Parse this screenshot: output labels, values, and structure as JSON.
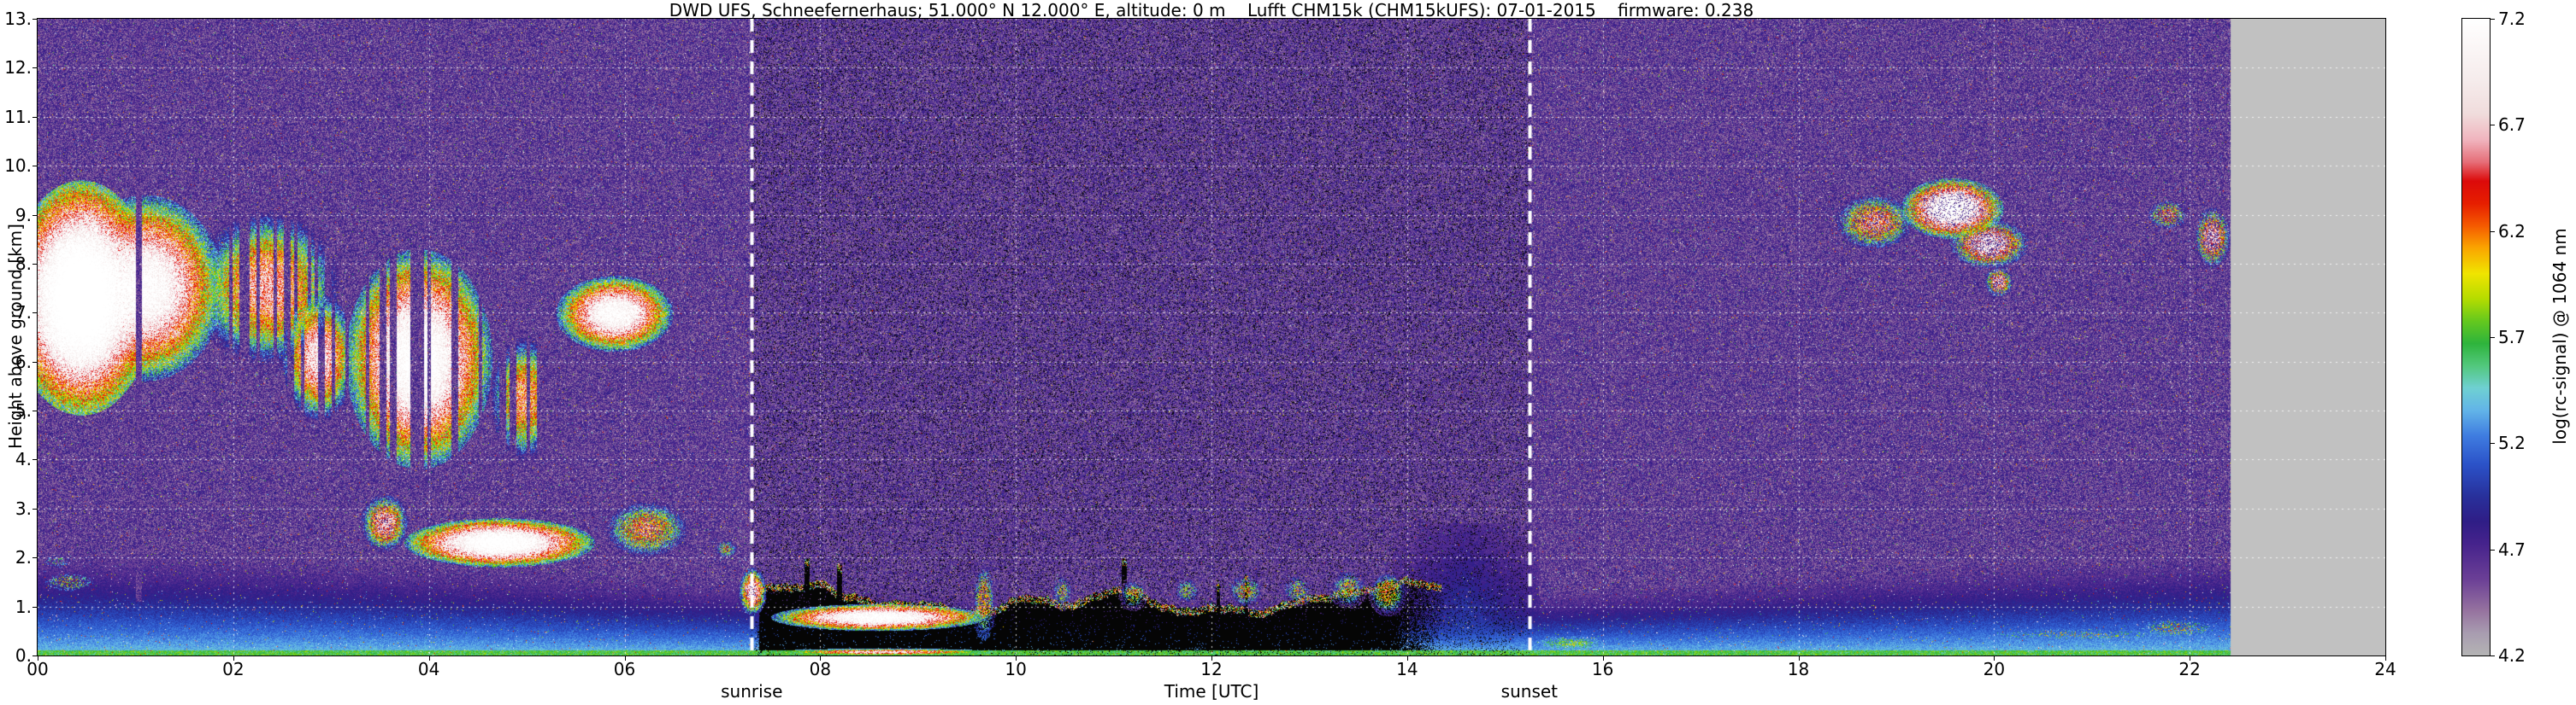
{
  "chart_data": {
    "type": "heatmap",
    "title": "DWD UFS, Schneefernerhaus; 51.000° N 12.000° E, altitude: 0 m    Lufft CHM15k (CHM15kUFS): 07-01-2015    firmware: 0.238",
    "xlabel": "Time [UTC]",
    "ylabel": "Height above ground [km]",
    "xlim": [
      0,
      24
    ],
    "ylim": [
      0,
      13
    ],
    "xticks": [
      "00",
      "02",
      "04",
      "06",
      "08",
      "10",
      "12",
      "14",
      "16",
      "18",
      "20",
      "22",
      "24"
    ],
    "yticks": [
      "0.",
      "1.",
      "2.",
      "3.",
      "4.",
      "5.",
      "6.",
      "7.",
      "8.",
      "9.",
      "10.",
      "11.",
      "12.",
      "13."
    ],
    "grid": true,
    "grid_color": "#ffffff",
    "colorbar": {
      "label": "log(rc-signal) @ 1064 nm",
      "min": 4.2,
      "max": 7.2,
      "ticks": [
        "7.2",
        "6.7",
        "6.2",
        "5.7",
        "5.2",
        "4.7",
        "4.2"
      ],
      "stops": [
        {
          "p": 0.0,
          "c": "#b4b4b4"
        },
        {
          "p": 0.035,
          "c": "#a89cb0"
        },
        {
          "p": 0.07,
          "c": "#96739f"
        },
        {
          "p": 0.12,
          "c": "#6b3f96"
        },
        {
          "p": 0.175,
          "c": "#46238c"
        },
        {
          "p": 0.21,
          "c": "#2f1d86"
        },
        {
          "p": 0.25,
          "c": "#28309b"
        },
        {
          "p": 0.3,
          "c": "#2b52c8"
        },
        {
          "p": 0.345,
          "c": "#3f7ce0"
        },
        {
          "p": 0.385,
          "c": "#62b4e8"
        },
        {
          "p": 0.42,
          "c": "#6fd0d2"
        },
        {
          "p": 0.455,
          "c": "#52c87d"
        },
        {
          "p": 0.49,
          "c": "#2eb43c"
        },
        {
          "p": 0.525,
          "c": "#64c81e"
        },
        {
          "p": 0.56,
          "c": "#b4dc00"
        },
        {
          "p": 0.6,
          "c": "#f0e400"
        },
        {
          "p": 0.64,
          "c": "#faa500"
        },
        {
          "p": 0.675,
          "c": "#f55a00"
        },
        {
          "p": 0.71,
          "c": "#e61e00"
        },
        {
          "p": 0.745,
          "c": "#dc0a0a"
        },
        {
          "p": 0.775,
          "c": "#e66e78"
        },
        {
          "p": 0.81,
          "c": "#f0b4be"
        },
        {
          "p": 0.85,
          "c": "#f0dcdc"
        },
        {
          "p": 0.9,
          "c": "#f5ebeb"
        },
        {
          "p": 1.0,
          "c": "#ffffff"
        }
      ]
    },
    "annotations": [
      {
        "label": "sunrise",
        "time": 7.3
      },
      {
        "label": "sunset",
        "time": 15.25
      }
    ],
    "background": {
      "base_value": 4.36,
      "noise_amplitude": 0.52,
      "sparkle_prob": 0.02
    },
    "boundary_layer": {
      "surface_value": 5.42,
      "decay_per_km": 0.62
    },
    "daytime_attenuation": {
      "t0": 7.38,
      "t1": 14.35,
      "bottom_km": 0.1,
      "top_base_km": 1.05,
      "fringe_km": 0.15,
      "speckle_prob": 0.03,
      "column_black_prob": 0.1
    },
    "plume": {
      "t0": 13.85,
      "t1": 15.35,
      "h_top_km": 2.7
    },
    "no_data": {
      "t_start": 22.42,
      "color": "#c1c1c1"
    },
    "gaps": [
      {
        "t": 1.03,
        "width": 0.05
      }
    ],
    "clouds": [
      {
        "t0": -0.3,
        "t1": 1.2,
        "h0": 4.9,
        "h1": 9.7,
        "peak": 7.9,
        "style": "blob",
        "density": 1
      },
      {
        "t0": 0.3,
        "t1": 1.9,
        "h0": 5.6,
        "h1": 9.4,
        "peak": 7.4,
        "style": "blob",
        "density": 1
      },
      {
        "t0": 1.6,
        "t1": 3.1,
        "h0": 5.9,
        "h1": 9.1,
        "peak": 6.7,
        "style": "streaks",
        "density": 0.75
      },
      {
        "t0": 2.5,
        "t1": 3.25,
        "h0": 4.8,
        "h1": 7.4,
        "peak": 7.0,
        "style": "streaks",
        "density": 0.6
      },
      {
        "t0": 3.15,
        "t1": 4.65,
        "h0": 3.8,
        "h1": 8.3,
        "peak": 7.5,
        "style": "streaks",
        "density": 0.62
      },
      {
        "t0": 4.6,
        "t1": 5.35,
        "h0": 3.9,
        "h1": 6.6,
        "peak": 6.5,
        "style": "streaks",
        "density": 0.5
      },
      {
        "t0": 5.3,
        "t1": 6.5,
        "h0": 6.2,
        "h1": 7.75,
        "peak": 7.4,
        "style": "blob",
        "density": 1
      },
      {
        "t0": 3.3,
        "t1": 3.8,
        "h0": 2.1,
        "h1": 3.3,
        "peak": 6.8,
        "style": "speckle",
        "density": 0.75
      },
      {
        "t0": 3.75,
        "t1": 5.7,
        "h0": 1.8,
        "h1": 2.8,
        "peak": 7.6,
        "style": "blob",
        "density": 1
      },
      {
        "t0": 5.75,
        "t1": 6.7,
        "h0": 1.95,
        "h1": 3.2,
        "peak": 6.4,
        "style": "speckle",
        "density": 0.7
      },
      {
        "t0": 6.9,
        "t1": 7.18,
        "h0": 1.95,
        "h1": 2.4,
        "peak": 6.0,
        "style": "speckle",
        "density": 0.6
      },
      {
        "t0": 7.17,
        "t1": 7.45,
        "h0": 0.8,
        "h1": 1.8,
        "peak": 7.0,
        "style": "speckle",
        "density": 0.85
      },
      {
        "t0": 7.5,
        "t1": 9.7,
        "h0": 0.5,
        "h1": 1.05,
        "peak": 7.5,
        "style": "blob",
        "density": 1
      },
      {
        "t0": 7.5,
        "t1": 9.8,
        "h0": 0.0,
        "h1": 0.14,
        "peak": 6.9,
        "style": "blob",
        "density": 1
      },
      {
        "t0": 15.05,
        "t1": 16.3,
        "h0": 0.0,
        "h1": 0.5,
        "peak": 5.6,
        "style": "blob",
        "density": 1
      },
      {
        "t0": 9.55,
        "t1": 9.8,
        "h0": 0.3,
        "h1": 1.95,
        "peak": 6.3,
        "style": "speckle",
        "density": 0.55
      },
      {
        "t0": 10.35,
        "t1": 10.6,
        "h0": 0.9,
        "h1": 1.7,
        "peak": 5.9,
        "style": "speckle",
        "density": 0.5
      },
      {
        "t0": 11.05,
        "t1": 11.35,
        "h0": 0.9,
        "h1": 1.6,
        "peak": 6.0,
        "style": "speckle",
        "density": 0.5
      },
      {
        "t0": 11.6,
        "t1": 11.9,
        "h0": 1.0,
        "h1": 1.65,
        "peak": 5.9,
        "style": "speckle",
        "density": 0.5
      },
      {
        "t0": 12.15,
        "t1": 12.55,
        "h0": 0.95,
        "h1": 1.7,
        "peak": 6.1,
        "style": "speckle",
        "density": 0.5
      },
      {
        "t0": 12.7,
        "t1": 13.05,
        "h0": 1.0,
        "h1": 1.7,
        "peak": 5.9,
        "style": "speckle",
        "density": 0.5
      },
      {
        "t0": 13.2,
        "t1": 13.6,
        "h0": 0.95,
        "h1": 1.8,
        "peak": 6.0,
        "style": "speckle",
        "density": 0.55
      },
      {
        "t0": 13.6,
        "t1": 14.0,
        "h0": 0.8,
        "h1": 1.75,
        "peak": 6.3,
        "style": "speckle",
        "density": 0.6
      },
      {
        "t0": 18.35,
        "t1": 19.2,
        "h0": 8.25,
        "h1": 9.45,
        "peak": 6.6,
        "style": "speckle",
        "density": 0.65
      },
      {
        "t0": 19.05,
        "t1": 20.1,
        "h0": 8.5,
        "h1": 9.75,
        "peak": 7.5,
        "style": "speckle",
        "density": 0.8
      },
      {
        "t0": 19.55,
        "t1": 20.35,
        "h0": 7.9,
        "h1": 8.9,
        "peak": 7.1,
        "style": "speckle",
        "density": 0.6
      },
      {
        "t0": 19.9,
        "t1": 20.2,
        "h0": 7.3,
        "h1": 7.95,
        "peak": 6.8,
        "style": "speckle",
        "density": 0.6
      },
      {
        "t0": 21.55,
        "t1": 22.0,
        "h0": 8.65,
        "h1": 9.35,
        "peak": 6.4,
        "style": "speckle",
        "density": 0.4
      },
      {
        "t0": 22.05,
        "t1": 22.42,
        "h0": 7.9,
        "h1": 9.15,
        "peak": 6.9,
        "style": "speckle",
        "density": 0.5
      },
      {
        "t0": 19.3,
        "t1": 22.42,
        "h0": 0.25,
        "h1": 0.6,
        "peak": 5.8,
        "style": "speckle",
        "density": 0.22
      },
      {
        "t0": 21.3,
        "t1": 22.42,
        "h0": 0.3,
        "h1": 0.8,
        "peak": 6.0,
        "style": "speckle",
        "density": 0.35
      },
      {
        "t0": 0.0,
        "t1": 0.65,
        "h0": 1.25,
        "h1": 1.75,
        "peak": 6.0,
        "style": "speckle",
        "density": 0.4
      },
      {
        "t0": 0.0,
        "t1": 0.4,
        "h0": 1.7,
        "h1": 2.15,
        "peak": 5.6,
        "style": "speckle",
        "density": 0.3
      }
    ]
  }
}
